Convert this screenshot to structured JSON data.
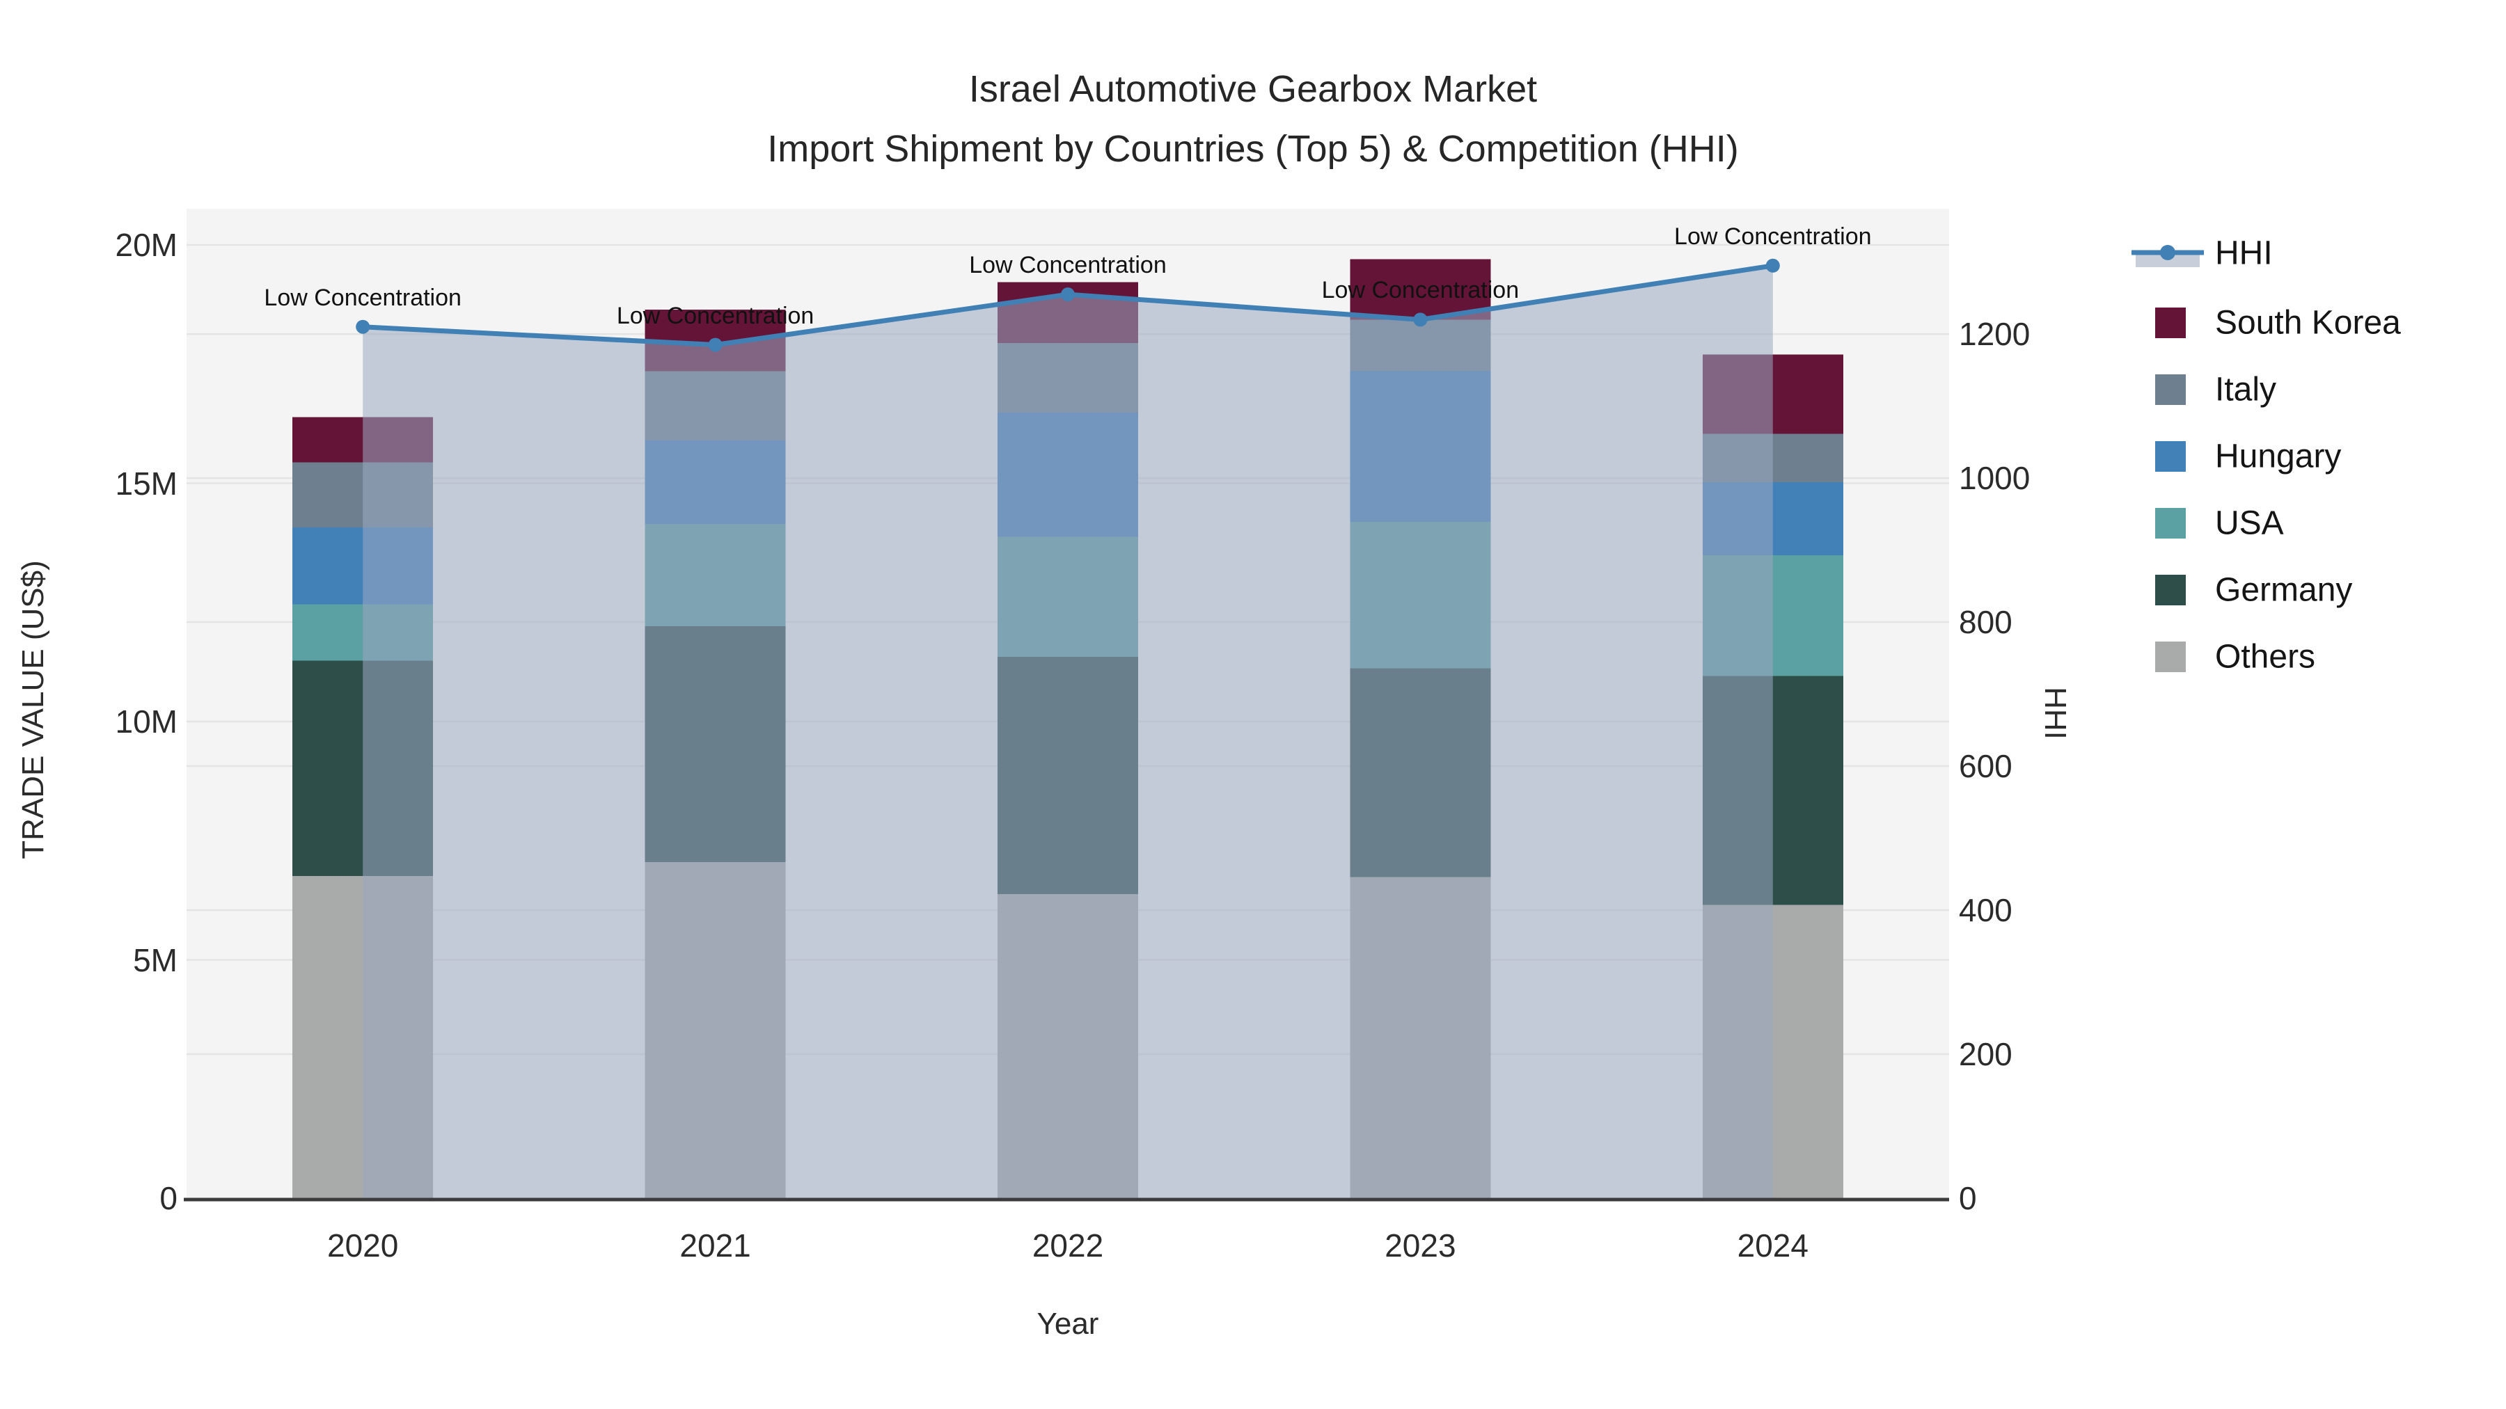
{
  "title": {
    "line1": "Israel Automotive Gearbox Market",
    "line2": "Import Shipment by Countries (Top 5) & Competition (HHI)"
  },
  "axes": {
    "x": {
      "title": "Year",
      "ticks": [
        "2020",
        "2021",
        "2022",
        "2023",
        "2024"
      ]
    },
    "y_left": {
      "title": "TRADE VALUE (US$)",
      "ticks": [
        {
          "label": "0",
          "value": 0
        },
        {
          "label": "5M",
          "value": 5
        },
        {
          "label": "10M",
          "value": 10
        },
        {
          "label": "15M",
          "value": 15
        },
        {
          "label": "20M",
          "value": 20
        }
      ],
      "range_musd": [
        0,
        20.76
      ]
    },
    "y_right": {
      "title": "HHI",
      "ticks": [
        {
          "label": "0",
          "value": 0
        },
        {
          "label": "200",
          "value": 200
        },
        {
          "label": "400",
          "value": 400
        },
        {
          "label": "600",
          "value": 600
        },
        {
          "label": "800",
          "value": 800
        },
        {
          "label": "1000",
          "value": 1000
        },
        {
          "label": "1200",
          "value": 1200
        }
      ],
      "range": [
        0,
        1374
      ]
    }
  },
  "legend": {
    "items": [
      {
        "label": "HHI",
        "type": "line",
        "color": "#4180b4",
        "band_color": "#c9cfda"
      },
      {
        "label": "South Korea",
        "type": "swatch",
        "color": "#641437"
      },
      {
        "label": "Italy",
        "type": "swatch",
        "color": "#6e8090"
      },
      {
        "label": "Hungary",
        "type": "swatch",
        "color": "#4281b8"
      },
      {
        "label": "USA",
        "type": "swatch",
        "color": "#5ba0a2"
      },
      {
        "label": "Germany",
        "type": "swatch",
        "color": "#2e4e4a"
      },
      {
        "label": "Others",
        "type": "swatch",
        "color": "#a9abaa"
      }
    ]
  },
  "colors": {
    "plot_background": "#f3f4f3",
    "gridline": "#e4e4e4",
    "axis_line": "#3b3b3b",
    "hhi_line": "#4180b4",
    "hhi_area": "rgba(154,168,193,0.55)"
  },
  "chart_data": {
    "type": "bar",
    "subtype": "stacked bars (left axis, US$ millions) + HHI line with shaded area (right axis)",
    "categories": [
      "2020",
      "2021",
      "2022",
      "2023",
      "2024"
    ],
    "stack_order_bottom_to_top": [
      "Others",
      "Germany",
      "USA",
      "Hungary",
      "Italy",
      "South Korea"
    ],
    "series": [
      {
        "name": "South Korea",
        "color": "#641437",
        "values_musd": [
          0.95,
          1.29,
          1.28,
          1.27,
          1.66
        ]
      },
      {
        "name": "Italy",
        "color": "#6e8090",
        "values_musd": [
          1.37,
          1.45,
          1.46,
          1.07,
          1.02
        ]
      },
      {
        "name": "Hungary",
        "color": "#4281b8",
        "values_musd": [
          1.61,
          1.75,
          2.6,
          3.17,
          1.53
        ]
      },
      {
        "name": "USA",
        "color": "#5ba0a2",
        "values_musd": [
          1.18,
          2.15,
          2.52,
          3.07,
          2.53
        ]
      },
      {
        "name": "Germany",
        "color": "#2e4e4a",
        "values_musd": [
          4.52,
          4.95,
          4.98,
          4.38,
          4.81
        ]
      },
      {
        "name": "Others",
        "color": "#a9abaa",
        "values_musd": [
          6.76,
          7.05,
          6.38,
          6.74,
          6.15
        ]
      }
    ],
    "totals_musd": [
      16.39,
      18.64,
      19.22,
      19.7,
      17.7
    ],
    "hhi": {
      "name": "HHI",
      "color": "#4180b4",
      "values": [
        1210,
        1185,
        1255,
        1220,
        1295
      ],
      "annotations": [
        "Low Concentration",
        "Low Concentration",
        "Low Concentration",
        "Low Concentration",
        "Low Concentration"
      ]
    },
    "title": "Israel Automotive Gearbox Market — Import Shipment by Countries (Top 5) & Competition (HHI)",
    "xlabel": "Year",
    "ylabel_left": "TRADE VALUE (US$)",
    "ylabel_right": "HHI",
    "ylim_left_musd": [
      0,
      20.76
    ],
    "ylim_right": [
      0,
      1374
    ],
    "grid": true,
    "legend_position": "right-top"
  }
}
